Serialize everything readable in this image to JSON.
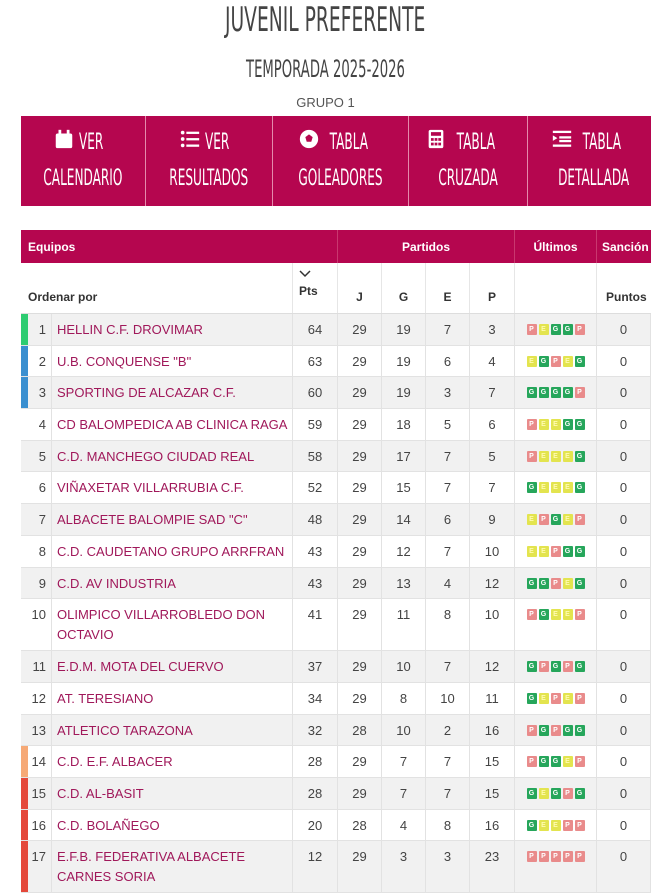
{
  "header": {
    "title": "JUVENIL PREFERENTE",
    "season": "TEMPORADA 2025-2026",
    "group": "GRUPO 1"
  },
  "menu": [
    {
      "icon": "calendar-icon",
      "l1": "VER",
      "l2": "CALENDARIO"
    },
    {
      "icon": "list-icon",
      "l1": "VER",
      "l2": "RESULTADOS"
    },
    {
      "icon": "soccer-ball-icon",
      "l1": "TABLA",
      "l2": "GOLEADORES"
    },
    {
      "icon": "calculator-icon",
      "l1": "TABLA",
      "l2": "CRUZADA"
    },
    {
      "icon": "indent-list-icon",
      "l1": "TABLA",
      "l2": "DETALLADA"
    }
  ],
  "table": {
    "headers": {
      "teams": "Equipos",
      "matches": "Partidos",
      "last": "Últimos",
      "sanction": "Sanción"
    },
    "subheaders": {
      "sort": "Ordenar por",
      "pts": "Pts",
      "j": "J",
      "g": "G",
      "e": "E",
      "p": "P",
      "points": "Puntos"
    },
    "colors": {
      "G": "#26a65b",
      "E": "#e3e44f",
      "P": "#e98b8b",
      "accent": "#b5064f"
    },
    "rows": [
      {
        "pos": "1",
        "team": "HELLIN C.F. DROVIMAR",
        "pts": "64",
        "j": "29",
        "g": "19",
        "e": "7",
        "p": "3",
        "last": [
          "P",
          "E",
          "G",
          "G",
          "P"
        ],
        "sanction": "0",
        "marker": "#2ecc71"
      },
      {
        "pos": "2",
        "team": "U.B. CONQUENSE \"B\"",
        "pts": "63",
        "j": "29",
        "g": "19",
        "e": "6",
        "p": "4",
        "last": [
          "E",
          "G",
          "P",
          "E",
          "G"
        ],
        "sanction": "0",
        "marker": "#3a8fd0"
      },
      {
        "pos": "3",
        "team": "SPORTING DE ALCAZAR C.F.",
        "pts": "60",
        "j": "29",
        "g": "19",
        "e": "3",
        "p": "7",
        "last": [
          "G",
          "G",
          "G",
          "G",
          "P"
        ],
        "sanction": "0",
        "marker": "#3a8fd0"
      },
      {
        "pos": "4",
        "team": "CD BALOMPEDICA AB CLINICA RAGA",
        "pts": "59",
        "j": "29",
        "g": "18",
        "e": "5",
        "p": "6",
        "last": [
          "P",
          "E",
          "E",
          "G",
          "G"
        ],
        "sanction": "0",
        "marker": ""
      },
      {
        "pos": "5",
        "team": "C.D. MANCHEGO CIUDAD REAL",
        "pts": "58",
        "j": "29",
        "g": "17",
        "e": "7",
        "p": "5",
        "last": [
          "P",
          "E",
          "E",
          "E",
          "G"
        ],
        "sanction": "0",
        "marker": ""
      },
      {
        "pos": "6",
        "team": "VIÑAXETAR VILLARRUBIA C.F.",
        "pts": "52",
        "j": "29",
        "g": "15",
        "e": "7",
        "p": "7",
        "last": [
          "G",
          "E",
          "E",
          "E",
          "G"
        ],
        "sanction": "0",
        "marker": ""
      },
      {
        "pos": "7",
        "team": "ALBACETE BALOMPIE SAD \"C\"",
        "pts": "48",
        "j": "29",
        "g": "14",
        "e": "6",
        "p": "9",
        "last": [
          "E",
          "P",
          "G",
          "E",
          "P"
        ],
        "sanction": "0",
        "marker": ""
      },
      {
        "pos": "8",
        "team": "C.D. CAUDETANO GRUPO ARRFRAN",
        "pts": "43",
        "j": "29",
        "g": "12",
        "e": "7",
        "p": "10",
        "last": [
          "E",
          "E",
          "P",
          "G",
          "G"
        ],
        "sanction": "0",
        "marker": ""
      },
      {
        "pos": "9",
        "team": "C.D. AV INDUSTRIA",
        "pts": "43",
        "j": "29",
        "g": "13",
        "e": "4",
        "p": "12",
        "last": [
          "G",
          "G",
          "P",
          "E",
          "G"
        ],
        "sanction": "0",
        "marker": ""
      },
      {
        "pos": "10",
        "team": "OLIMPICO VILLARROBLEDO DON OCTAVIO",
        "pts": "41",
        "j": "29",
        "g": "11",
        "e": "8",
        "p": "10",
        "last": [
          "P",
          "G",
          "E",
          "E",
          "P"
        ],
        "sanction": "0",
        "marker": ""
      },
      {
        "pos": "11",
        "team": "E.D.M. MOTA DEL CUERVO",
        "pts": "37",
        "j": "29",
        "g": "10",
        "e": "7",
        "p": "12",
        "last": [
          "G",
          "P",
          "G",
          "P",
          "G"
        ],
        "sanction": "0",
        "marker": ""
      },
      {
        "pos": "12",
        "team": "AT. TERESIANO",
        "pts": "34",
        "j": "29",
        "g": "8",
        "e": "10",
        "p": "11",
        "last": [
          "G",
          "E",
          "P",
          "E",
          "P"
        ],
        "sanction": "0",
        "marker": ""
      },
      {
        "pos": "13",
        "team": "ATLETICO TARAZONA",
        "pts": "32",
        "j": "28",
        "g": "10",
        "e": "2",
        "p": "16",
        "last": [
          "P",
          "G",
          "P",
          "G",
          "G"
        ],
        "sanction": "0",
        "marker": ""
      },
      {
        "pos": "14",
        "team": "C.D. E.F. ALBACER",
        "pts": "28",
        "j": "29",
        "g": "7",
        "e": "7",
        "p": "15",
        "last": [
          "P",
          "G",
          "G",
          "E",
          "P"
        ],
        "sanction": "0",
        "marker": "#f6a976"
      },
      {
        "pos": "15",
        "team": "C.D. AL-BASIT",
        "pts": "28",
        "j": "29",
        "g": "7",
        "e": "7",
        "p": "15",
        "last": [
          "G",
          "E",
          "G",
          "P",
          "G"
        ],
        "sanction": "0",
        "marker": "#e4483a"
      },
      {
        "pos": "16",
        "team": "C.D. BOLAÑEGO",
        "pts": "20",
        "j": "28",
        "g": "4",
        "e": "8",
        "p": "16",
        "last": [
          "G",
          "E",
          "E",
          "P",
          "P"
        ],
        "sanction": "0",
        "marker": "#e4483a"
      },
      {
        "pos": "17",
        "team": "E.F.B. FEDERATIVA ALBACETE CARNES SORIA",
        "pts": "12",
        "j": "29",
        "g": "3",
        "e": "3",
        "p": "23",
        "last": [
          "P",
          "P",
          "P",
          "P",
          "P"
        ],
        "sanction": "0",
        "marker": "#e4483a"
      }
    ]
  }
}
